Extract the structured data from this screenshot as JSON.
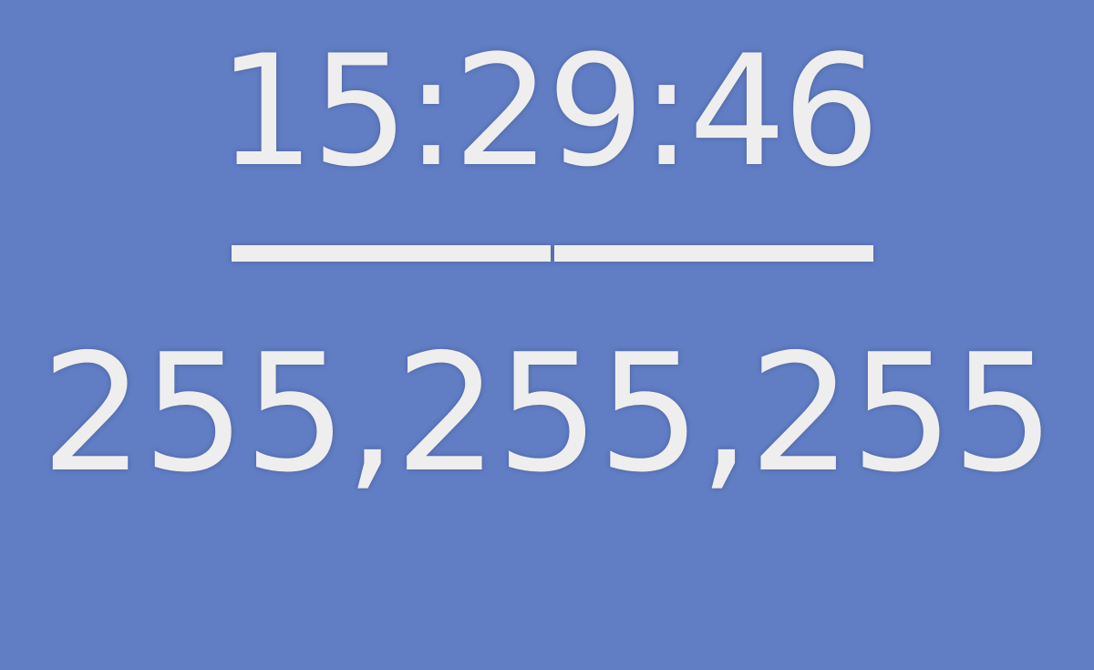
{
  "clock": {
    "time": "15:29:46"
  },
  "color": {
    "rgb_text": "255,255,255",
    "background": "#617dc4",
    "foreground": "#eeeeee"
  }
}
